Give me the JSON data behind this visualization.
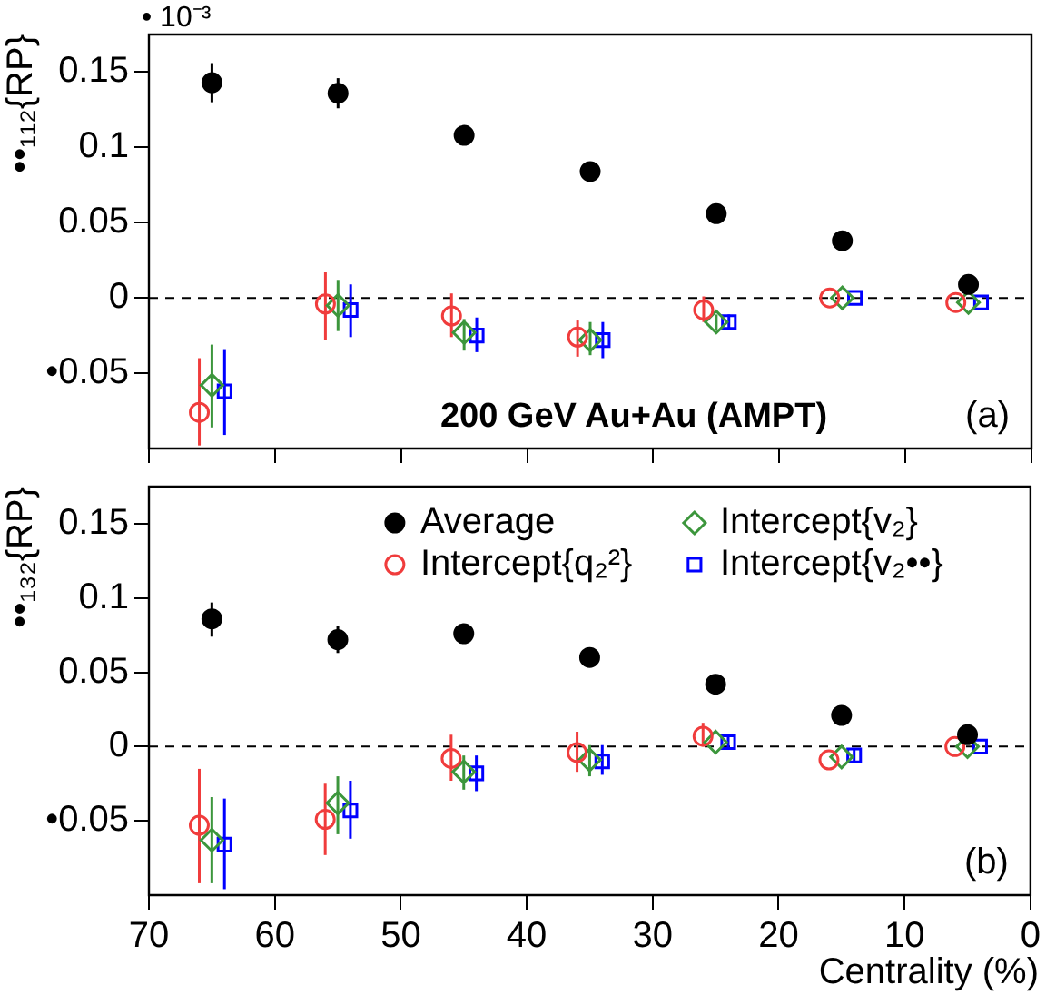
{
  "chart_data": [
    {
      "type": "scatter",
      "ylabel": "••₁₁₂{RP}",
      "xlim": [
        70,
        0
      ],
      "xticks": [
        70,
        60,
        50,
        40,
        30,
        20,
        10,
        0
      ],
      "ylim": [
        -0.1,
        0.175
      ],
      "yticks": [
        {
          "value": -0.05,
          "label": "•0.05"
        },
        0,
        0.05,
        0.1,
        0.15
      ],
      "tick_labels": "y",
      "legend": false,
      "annotations": [
        "• 10⁻³",
        "200 GeV Au+Au (AMPT)",
        "(a)"
      ],
      "ref_lines": [
        {
          "axis": "y",
          "value": 0,
          "line_style": "dashed",
          "color": "#000000"
        }
      ],
      "series": [
        {
          "color": "#000000",
          "marker": "circle",
          "x": [
            65,
            55,
            45,
            35,
            25,
            15,
            5
          ],
          "values": [
            0.143,
            0.136,
            0.108,
            0.084,
            0.056,
            0.038,
            0.009
          ],
          "errors": [
            [
              0.13,
              0.156
            ],
            [
              0.126,
              0.146
            ],
            [
              0.104,
              0.113
            ],
            null,
            null,
            null,
            null
          ]
        },
        {
          "color": "#f03c3c",
          "marker": "circle",
          "x": [
            66,
            56,
            46,
            36,
            26,
            16,
            6
          ],
          "values": [
            -0.076,
            -0.004,
            -0.012,
            -0.026,
            -0.008,
            0,
            -0.003
          ],
          "errors": [
            [
              -0.098,
              -0.04
            ],
            [
              -0.028,
              0.017
            ],
            [
              -0.026,
              0.003
            ],
            [
              -0.039,
              -0.015
            ],
            [
              -0.016,
              0.001
            ],
            null,
            null
          ]
        },
        {
          "color": "#3c963c",
          "marker": "diamond",
          "x": [
            65,
            55,
            45,
            35,
            25,
            15,
            5
          ],
          "values": [
            -0.058,
            -0.005,
            -0.023,
            -0.028,
            -0.016,
            0,
            -0.003
          ],
          "errors": [
            [
              -0.086,
              -0.031
            ],
            [
              -0.022,
              0.012
            ],
            [
              -0.035,
              -0.014
            ],
            [
              -0.038,
              -0.016
            ],
            [
              -0.021,
              -0.011
            ],
            null,
            null
          ]
        },
        {
          "color": "#0000ff",
          "marker": "square",
          "x": [
            64,
            54,
            44,
            34,
            24,
            14,
            4
          ],
          "values": [
            -0.062,
            -0.008,
            -0.025,
            -0.028,
            -0.016,
            0,
            -0.003
          ],
          "errors": [
            [
              -0.091,
              -0.034
            ],
            [
              -0.026,
              0.009
            ],
            [
              -0.036,
              -0.013
            ],
            [
              -0.04,
              -0.016
            ],
            [
              -0.021,
              -0.011
            ],
            null,
            null
          ]
        }
      ]
    },
    {
      "type": "scatter",
      "ylabel": "••₁₃₂{RP}",
      "xlabel": "Centrality (%)",
      "xlim": [
        70,
        0
      ],
      "xticks": [
        70,
        60,
        50,
        40,
        30,
        20,
        10,
        0
      ],
      "ylim": [
        -0.1,
        0.175
      ],
      "yticks": [
        {
          "value": -0.05,
          "label": "•0.05"
        },
        0,
        0.05,
        0.1,
        0.15
      ],
      "legend": "top right",
      "annotations": [
        "(b)"
      ],
      "ref_lines": [
        {
          "axis": "y",
          "value": 0,
          "line_style": "dashed",
          "color": "#000000"
        }
      ],
      "series": [
        {
          "name": "Average",
          "color": "#000000",
          "marker": "circle",
          "x": [
            65,
            55,
            45,
            35,
            25,
            15,
            5
          ],
          "values": [
            0.086,
            0.072,
            0.076,
            0.06,
            0.042,
            0.021,
            0.008
          ],
          "errors": [
            [
              0.074,
              0.097
            ],
            [
              0.063,
              0.081
            ],
            [
              0.072,
              0.08
            ],
            null,
            null,
            null,
            null
          ]
        },
        {
          "name": "Intercept{q₂²}",
          "color": "#f03c3c",
          "marker": "circle",
          "x": [
            66,
            56,
            46,
            36,
            26,
            16,
            6
          ],
          "values": [
            -0.053,
            -0.049,
            -0.008,
            -0.004,
            0.007,
            -0.009,
            0
          ],
          "errors": [
            [
              -0.092,
              -0.015
            ],
            [
              -0.073,
              -0.025
            ],
            [
              -0.023,
              0.008
            ],
            [
              -0.017,
              0.01
            ],
            [
              0,
              0.016
            ],
            null,
            null
          ]
        },
        {
          "name": "Intercept{v₂}",
          "color": "#3c963c",
          "marker": "diamond",
          "x": [
            65,
            55,
            45,
            35,
            25,
            15,
            5
          ],
          "values": [
            -0.063,
            -0.038,
            -0.017,
            -0.009,
            0.003,
            -0.007,
            0
          ],
          "errors": [
            [
              -0.092,
              -0.034
            ],
            [
              -0.059,
              -0.02
            ],
            [
              -0.029,
              -0.006
            ],
            [
              -0.02,
              0.001
            ],
            null,
            null,
            null
          ]
        },
        {
          "name": "Intercept{v₂••}",
          "color": "#0000ff",
          "marker": "square",
          "x": [
            64,
            54,
            44,
            34,
            24,
            14,
            4
          ],
          "values": [
            -0.066,
            -0.043,
            -0.018,
            -0.01,
            0.003,
            -0.006,
            0
          ],
          "errors": [
            [
              -0.096,
              -0.035
            ],
            [
              -0.062,
              -0.023
            ],
            [
              -0.03,
              -0.006
            ],
            [
              -0.019,
              0.001
            ],
            [
              -0.002,
              0.008
            ],
            [
              -0.01,
              -0.002
            ],
            null
          ]
        }
      ]
    }
  ]
}
